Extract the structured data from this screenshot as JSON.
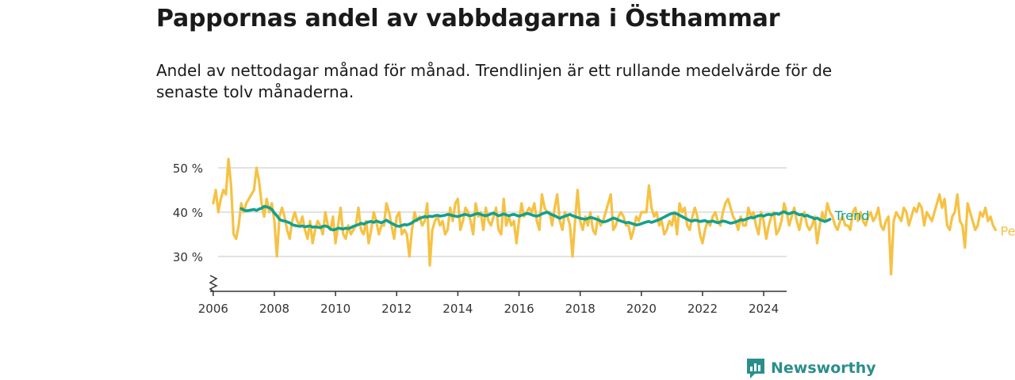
{
  "header": {
    "title": "Pappornas andel av vabbdagarna i Östhammar",
    "subtitle": "Andel av nettodagar månad för månad. Trendlinjen är ett rullande medelvärde för de senaste tolv månaderna."
  },
  "brand": {
    "name": "Newsworthy",
    "icon": "newsworthy-logo-icon"
  },
  "colors": {
    "per_month": "#f6c244",
    "trend": "#14a08c",
    "grid": "#d9d9d9",
    "axis": "#333333",
    "brand": "#2a8f8a"
  },
  "chart_data": {
    "type": "line",
    "title": "Pappornas andel av vabbdagarna i Östhammar",
    "xlabel": "",
    "ylabel": "",
    "xlim": [
      2005.9,
      2024.75
    ],
    "ylim": [
      22,
      53
    ],
    "y_ticks": [
      30,
      40,
      50
    ],
    "y_tick_labels": [
      "30 %",
      "40 %",
      "50 %"
    ],
    "x_ticks": [
      2006,
      2008,
      2010,
      2012,
      2014,
      2016,
      2018,
      2020,
      2022,
      2024
    ],
    "x_tick_labels": [
      "2006",
      "2008",
      "2010",
      "2012",
      "2014",
      "2016",
      "2018",
      "2020",
      "2022",
      "2024"
    ],
    "y_axis_break": true,
    "grid": true,
    "series": [
      {
        "name": "Per månad",
        "x_start": 2006.0,
        "x_step": 0.08333,
        "values": [
          42,
          45,
          40,
          43,
          45,
          44,
          52,
          46,
          35,
          34,
          37,
          42,
          40,
          42,
          43,
          44,
          45,
          50,
          47,
          42,
          39,
          43,
          40,
          42,
          38,
          30,
          39,
          41,
          39,
          36,
          34,
          38,
          40,
          38,
          37,
          39,
          36,
          34,
          38,
          33,
          36,
          38,
          37,
          35,
          40,
          37,
          36,
          39,
          33,
          37,
          41,
          35,
          34,
          37,
          35,
          36,
          37,
          41,
          36,
          35,
          38,
          33,
          36,
          40,
          38,
          35,
          37,
          37,
          42,
          40,
          37,
          34,
          39,
          40,
          35,
          36,
          35,
          30,
          36,
          40,
          38,
          39,
          37,
          38,
          42,
          28,
          36,
          38,
          39,
          37,
          38,
          35,
          36,
          41,
          38,
          42,
          43,
          36,
          38,
          41,
          40,
          38,
          35,
          42,
          39,
          40,
          36,
          41,
          38,
          37,
          39,
          41,
          36,
          35,
          43,
          37,
          39,
          37,
          38,
          33,
          38,
          42,
          39,
          40,
          41,
          40,
          42,
          38,
          36,
          44,
          41,
          40,
          40,
          37,
          41,
          44,
          38,
          36,
          40,
          39,
          37,
          30,
          38,
          45,
          38,
          36,
          39,
          37,
          40,
          36,
          35,
          39,
          37,
          38,
          40,
          42,
          44,
          36,
          37,
          39,
          40,
          39,
          37,
          37,
          34,
          36,
          39,
          38,
          40,
          40,
          40,
          46,
          41,
          39,
          40,
          37,
          38,
          35,
          36,
          38,
          37,
          40,
          35,
          42,
          40,
          41,
          37,
          36,
          39,
          41,
          39,
          35,
          33,
          36,
          38,
          37,
          39,
          40,
          38,
          37,
          40,
          42,
          43,
          41,
          39,
          38,
          36,
          39,
          37,
          37,
          41,
          39,
          40,
          37,
          35,
          40,
          38,
          34,
          37,
          39,
          40,
          35,
          36,
          38,
          42,
          40,
          37,
          39,
          41,
          38,
          36,
          39,
          40,
          37,
          36,
          37,
          39,
          33,
          37,
          40,
          38,
          42,
          40,
          39,
          37,
          36,
          38,
          39,
          37,
          37,
          36,
          40,
          41,
          38,
          40,
          38,
          37,
          39,
          40,
          38,
          39,
          41,
          37,
          36,
          38,
          39,
          26,
          38,
          40,
          39,
          38,
          41,
          40,
          37,
          39,
          41,
          40,
          42,
          41,
          37,
          40,
          39,
          38,
          40,
          42,
          44,
          41,
          43,
          37,
          36,
          39,
          40,
          44,
          38,
          37,
          32,
          42,
          40,
          38,
          36,
          37,
          40,
          39,
          41,
          38,
          39,
          37,
          36
        ],
        "color": "#f6c244",
        "label": "Per månad"
      },
      {
        "name": "Trend",
        "x_start": 2006.917,
        "x_step": 0.08333,
        "values": [
          40.8,
          40.5,
          40.3,
          40.4,
          40.5,
          40.6,
          40.4,
          40.7,
          40.9,
          41.3,
          41.2,
          41.0,
          40.6,
          39.8,
          39.2,
          38.4,
          38.1,
          38.0,
          37.8,
          37.6,
          37.2,
          37.0,
          36.9,
          36.8,
          36.9,
          36.7,
          36.8,
          36.9,
          36.6,
          36.7,
          36.6,
          36.5,
          36.8,
          36.9,
          36.7,
          36.2,
          36.0,
          36.1,
          36.4,
          36.3,
          36.2,
          36.4,
          36.3,
          36.5,
          36.8,
          37.0,
          37.2,
          37.5,
          37.3,
          37.6,
          37.8,
          37.9,
          37.7,
          38.0,
          37.8,
          37.6,
          37.9,
          38.2,
          37.8,
          37.5,
          37.2,
          36.9,
          36.8,
          37.0,
          37.2,
          37.1,
          37.3,
          37.6,
          38.0,
          38.3,
          38.6,
          38.8,
          39.0,
          38.9,
          39.1,
          39.0,
          39.2,
          39.3,
          39.1,
          39.2,
          39.3,
          39.5,
          39.4,
          39.2,
          39.1,
          39.0,
          39.2,
          39.4,
          39.5,
          39.3,
          39.2,
          39.4,
          39.6,
          39.7,
          39.5,
          39.3,
          39.2,
          39.4,
          39.6,
          39.8,
          39.5,
          39.2,
          39.4,
          39.6,
          39.4,
          39.2,
          39.4,
          39.5,
          39.3,
          39.1,
          39.3,
          39.5,
          39.7,
          39.6,
          39.4,
          39.2,
          39.1,
          39.3,
          39.6,
          39.8,
          40.0,
          39.7,
          39.4,
          39.2,
          38.9,
          38.6,
          38.9,
          39.1,
          39.3,
          39.5,
          39.2,
          39.0,
          38.8,
          38.6,
          38.5,
          38.4,
          38.6,
          38.8,
          38.7,
          38.5,
          38.3,
          38.0,
          37.8,
          37.9,
          38.1,
          38.4,
          38.7,
          38.5,
          38.2,
          38.0,
          37.8,
          37.6,
          37.7,
          37.5,
          37.3,
          37.1,
          37.2,
          37.4,
          37.6,
          37.8,
          37.9,
          37.7,
          37.9,
          38.1,
          38.3,
          38.6,
          38.9,
          39.2,
          39.5,
          39.7,
          39.8,
          39.6,
          39.3,
          39.0,
          38.7,
          38.4,
          38.1,
          38.0,
          38.2,
          38.1,
          37.9,
          38.0,
          38.1,
          37.8,
          37.9,
          38.0,
          37.8,
          37.6,
          37.8,
          38.0,
          37.9,
          37.7,
          37.5,
          37.6,
          37.8,
          38.0,
          38.3,
          38.2,
          38.4,
          38.6,
          38.8,
          38.7,
          39.0,
          39.2,
          39.3,
          39.1,
          39.4,
          39.5,
          39.4,
          39.6,
          39.7,
          39.5,
          39.9,
          40.1,
          39.8,
          39.6,
          39.9,
          40.0,
          39.7,
          39.4,
          39.5,
          39.1,
          39.3,
          39.0,
          38.8,
          38.5,
          38.7,
          38.3,
          38.1,
          37.9,
          38.1,
          38.4
        ],
        "color": "#14a08c",
        "label": "Trend"
      }
    ]
  }
}
